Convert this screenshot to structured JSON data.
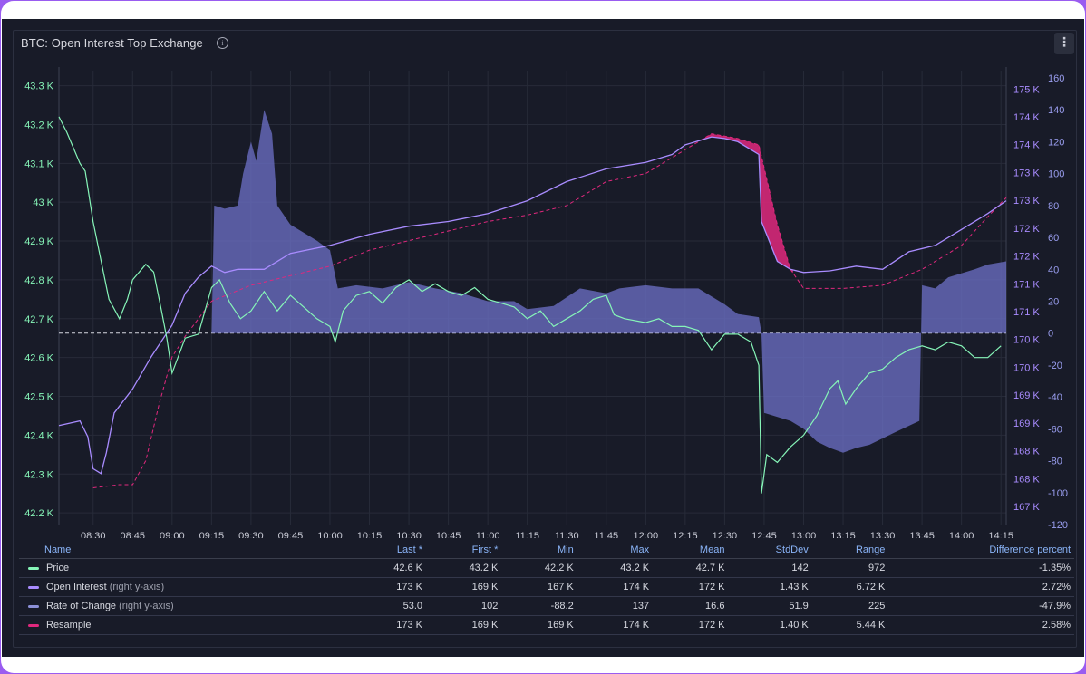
{
  "panel": {
    "title": "BTC: Open Interest Top Exchange",
    "info_icon": "info-icon",
    "menu_icon": "kebab-menu-icon"
  },
  "colors": {
    "price": "#86f5b8",
    "open_interest": "#a98cff",
    "rate_of_change": "#6d72c8",
    "resample": "#e0287d"
  },
  "chart_data": {
    "type": "line",
    "x_ticks": [
      "08:30",
      "08:45",
      "09:00",
      "09:15",
      "09:30",
      "09:45",
      "10:00",
      "10:15",
      "10:30",
      "10:45",
      "11:00",
      "11:15",
      "11:30",
      "11:45",
      "12:00",
      "12:15",
      "12:30",
      "12:45",
      "13:00",
      "13:15",
      "13:30",
      "13:45",
      "14:00",
      "14:15"
    ],
    "x_range": [
      "08:17",
      "14:17"
    ],
    "y_left": {
      "ticks": [
        "42.2 K",
        "42.3 K",
        "42.4 K",
        "42.5 K",
        "42.6 K",
        "42.7 K",
        "42.8 K",
        "42.9 K",
        "43 K",
        "43.1 K",
        "43.2 K",
        "43.3 K"
      ],
      "range": [
        42.17,
        43.32
      ]
    },
    "y_right_oi": {
      "ticks": [
        "167 K",
        "168 K",
        "168 K",
        "169 K",
        "169 K",
        "170 K",
        "170 K",
        "171 K",
        "171 K",
        "172 K",
        "172 K",
        "173 K",
        "173 K",
        "174 K",
        "174 K",
        "175 K"
      ]
    },
    "y_right_roc": {
      "ticks": [
        "-120",
        "-100",
        "-80",
        "-60",
        "-40",
        "-20",
        "0",
        "20",
        "40",
        "60",
        "80",
        "100",
        "120",
        "140",
        "160"
      ],
      "range": [
        -120,
        160
      ]
    },
    "series": [
      {
        "name": "Price",
        "axis": "left",
        "points": [
          [
            "08:17",
            43.22
          ],
          [
            "08:20",
            43.18
          ],
          [
            "08:25",
            43.1
          ],
          [
            "08:27",
            43.08
          ],
          [
            "08:30",
            42.95
          ],
          [
            "08:33",
            42.85
          ],
          [
            "08:36",
            42.75
          ],
          [
            "08:40",
            42.7
          ],
          [
            "08:43",
            42.75
          ],
          [
            "08:45",
            42.8
          ],
          [
            "08:50",
            42.84
          ],
          [
            "08:53",
            42.82
          ],
          [
            "08:56",
            42.72
          ],
          [
            "08:58",
            42.65
          ],
          [
            "09:00",
            42.56
          ],
          [
            "09:05",
            42.65
          ],
          [
            "09:10",
            42.66
          ],
          [
            "09:15",
            42.78
          ],
          [
            "09:18",
            42.8
          ],
          [
            "09:22",
            42.74
          ],
          [
            "09:26",
            42.7
          ],
          [
            "09:30",
            42.72
          ],
          [
            "09:35",
            42.77
          ],
          [
            "09:40",
            42.72
          ],
          [
            "09:45",
            42.76
          ],
          [
            "09:50",
            42.73
          ],
          [
            "09:55",
            42.7
          ],
          [
            "10:00",
            42.68
          ],
          [
            "10:02",
            42.64
          ],
          [
            "10:05",
            42.72
          ],
          [
            "10:10",
            42.76
          ],
          [
            "10:15",
            42.77
          ],
          [
            "10:20",
            42.74
          ],
          [
            "10:25",
            42.78
          ],
          [
            "10:30",
            42.8
          ],
          [
            "10:35",
            42.77
          ],
          [
            "10:40",
            42.79
          ],
          [
            "10:45",
            42.77
          ],
          [
            "10:50",
            42.76
          ],
          [
            "10:55",
            42.78
          ],
          [
            "11:00",
            42.75
          ],
          [
            "11:05",
            42.74
          ],
          [
            "11:10",
            42.73
          ],
          [
            "11:15",
            42.7
          ],
          [
            "11:20",
            42.72
          ],
          [
            "11:25",
            42.68
          ],
          [
            "11:30",
            42.7
          ],
          [
            "11:35",
            42.72
          ],
          [
            "11:40",
            42.75
          ],
          [
            "11:45",
            42.76
          ],
          [
            "11:48",
            42.71
          ],
          [
            "11:52",
            42.7
          ],
          [
            "12:00",
            42.69
          ],
          [
            "12:05",
            42.7
          ],
          [
            "12:10",
            42.68
          ],
          [
            "12:15",
            42.68
          ],
          [
            "12:20",
            42.67
          ],
          [
            "12:25",
            42.62
          ],
          [
            "12:30",
            42.66
          ],
          [
            "12:35",
            42.66
          ],
          [
            "12:40",
            42.64
          ],
          [
            "12:43",
            42.58
          ],
          [
            "12:44",
            42.25
          ],
          [
            "12:46",
            42.35
          ],
          [
            "12:50",
            42.33
          ],
          [
            "12:55",
            42.37
          ],
          [
            "13:00",
            42.4
          ],
          [
            "13:05",
            42.45
          ],
          [
            "13:10",
            42.52
          ],
          [
            "13:13",
            42.54
          ],
          [
            "13:16",
            42.48
          ],
          [
            "13:20",
            42.52
          ],
          [
            "13:25",
            42.56
          ],
          [
            "13:30",
            42.57
          ],
          [
            "13:35",
            42.6
          ],
          [
            "13:40",
            42.62
          ],
          [
            "13:45",
            42.63
          ],
          [
            "13:50",
            42.62
          ],
          [
            "13:55",
            42.64
          ],
          [
            "14:00",
            42.63
          ],
          [
            "14:05",
            42.6
          ],
          [
            "14:10",
            42.6
          ],
          [
            "14:15",
            42.63
          ]
        ]
      },
      {
        "name": "Open Interest",
        "axis": "right",
        "points": [
          [
            "08:17",
            -58
          ],
          [
            "08:25",
            -55
          ],
          [
            "08:28",
            -65
          ],
          [
            "08:30",
            -85
          ],
          [
            "08:33",
            -88
          ],
          [
            "08:35",
            -75
          ],
          [
            "08:38",
            -50
          ],
          [
            "08:45",
            -35
          ],
          [
            "08:52",
            -15
          ],
          [
            "09:00",
            5
          ],
          [
            "09:05",
            25
          ],
          [
            "09:10",
            35
          ],
          [
            "09:15",
            42
          ],
          [
            "09:20",
            38
          ],
          [
            "09:25",
            40
          ],
          [
            "09:35",
            40
          ],
          [
            "09:45",
            50
          ],
          [
            "10:00",
            55
          ],
          [
            "10:15",
            62
          ],
          [
            "10:30",
            67
          ],
          [
            "10:45",
            70
          ],
          [
            "11:00",
            75
          ],
          [
            "11:15",
            83
          ],
          [
            "11:30",
            95
          ],
          [
            "11:45",
            103
          ],
          [
            "12:00",
            107
          ],
          [
            "12:10",
            112
          ],
          [
            "12:15",
            118
          ],
          [
            "12:25",
            123
          ],
          [
            "12:30",
            122
          ],
          [
            "12:35",
            120
          ],
          [
            "12:40",
            115
          ],
          [
            "12:43",
            112
          ],
          [
            "12:44",
            70
          ],
          [
            "12:50",
            45
          ],
          [
            "12:55",
            40
          ],
          [
            "13:00",
            38
          ],
          [
            "13:10",
            39
          ],
          [
            "13:20",
            42
          ],
          [
            "13:30",
            40
          ],
          [
            "13:40",
            51
          ],
          [
            "13:50",
            55
          ],
          [
            "14:00",
            65
          ],
          [
            "14:10",
            75
          ],
          [
            "14:17",
            83
          ]
        ]
      },
      {
        "name": "Rate of Change",
        "axis": "right",
        "type": "area",
        "points": [
          [
            "09:15",
            0
          ],
          [
            "09:16",
            80
          ],
          [
            "09:20",
            78
          ],
          [
            "09:25",
            80
          ],
          [
            "09:27",
            100
          ],
          [
            "09:30",
            120
          ],
          [
            "09:32",
            108
          ],
          [
            "09:35",
            140
          ],
          [
            "09:38",
            125
          ],
          [
            "09:40",
            80
          ],
          [
            "09:45",
            68
          ],
          [
            "09:55",
            58
          ],
          [
            "10:00",
            52
          ],
          [
            "10:03",
            28
          ],
          [
            "10:10",
            30
          ],
          [
            "10:20",
            28
          ],
          [
            "10:30",
            32
          ],
          [
            "10:40",
            28
          ],
          [
            "10:50",
            25
          ],
          [
            "11:00",
            20
          ],
          [
            "11:10",
            20
          ],
          [
            "11:15",
            15
          ],
          [
            "11:25",
            17
          ],
          [
            "11:35",
            28
          ],
          [
            "11:45",
            25
          ],
          [
            "11:50",
            28
          ],
          [
            "12:00",
            30
          ],
          [
            "12:10",
            28
          ],
          [
            "12:20",
            28
          ],
          [
            "12:30",
            18
          ],
          [
            "12:35",
            12
          ],
          [
            "12:43",
            10
          ],
          [
            "12:44",
            0
          ],
          [
            "12:45",
            -50
          ],
          [
            "12:55",
            -55
          ],
          [
            "13:00",
            -60
          ],
          [
            "13:05",
            -68
          ],
          [
            "13:10",
            -72
          ],
          [
            "13:15",
            -75
          ],
          [
            "13:20",
            -72
          ],
          [
            "13:25",
            -70
          ],
          [
            "13:35",
            -62
          ],
          [
            "13:44",
            -55
          ],
          [
            "13:45",
            30
          ],
          [
            "13:50",
            28
          ],
          [
            "13:55",
            35
          ],
          [
            "14:05",
            40
          ],
          [
            "14:10",
            43
          ],
          [
            "14:17",
            45
          ]
        ]
      },
      {
        "name": "Resample",
        "axis": "right",
        "dashed": true,
        "points": [
          [
            "08:30",
            -97
          ],
          [
            "08:40",
            -95
          ],
          [
            "08:45",
            -95
          ],
          [
            "08:50",
            -80
          ],
          [
            "08:55",
            -45
          ],
          [
            "09:00",
            -15
          ],
          [
            "09:05",
            -2
          ],
          [
            "09:15",
            20
          ],
          [
            "09:30",
            30
          ],
          [
            "09:45",
            36
          ],
          [
            "10:00",
            42
          ],
          [
            "10:15",
            52
          ],
          [
            "10:30",
            58
          ],
          [
            "10:45",
            64
          ],
          [
            "11:00",
            70
          ],
          [
            "11:15",
            74
          ],
          [
            "11:30",
            80
          ],
          [
            "11:45",
            95
          ],
          [
            "12:00",
            100
          ],
          [
            "12:15",
            115
          ],
          [
            "12:25",
            125
          ],
          [
            "12:35",
            122
          ],
          [
            "12:43",
            118
          ],
          [
            "12:50",
            68
          ],
          [
            "12:55",
            40
          ],
          [
            "13:00",
            28
          ],
          [
            "13:15",
            28
          ],
          [
            "13:30",
            30
          ],
          [
            "13:45",
            40
          ],
          [
            "14:00",
            55
          ],
          [
            "14:10",
            73
          ],
          [
            "14:17",
            85
          ]
        ]
      }
    ],
    "zero_line": true
  },
  "legend": {
    "headers": [
      "Name",
      "Last *",
      "First *",
      "Min",
      "Max",
      "Mean",
      "StdDev",
      "Range",
      "Difference percent"
    ],
    "rows": [
      {
        "name": "Price",
        "note": "",
        "color": "#86f5b8",
        "values": [
          "42.6 K",
          "43.2 K",
          "42.2 K",
          "43.2 K",
          "42.7 K",
          "142",
          "972",
          "-1.35%"
        ]
      },
      {
        "name": "Open Interest",
        "note": "(right y-axis)",
        "color": "#a98cff",
        "values": [
          "173 K",
          "169 K",
          "167 K",
          "174 K",
          "172 K",
          "1.43 K",
          "6.72 K",
          "2.72%"
        ]
      },
      {
        "name": "Rate of Change",
        "note": "(right y-axis)",
        "color": "#8c90d8",
        "values": [
          "53.0",
          "102",
          "-88.2",
          "137",
          "16.6",
          "51.9",
          "225",
          "-47.9%"
        ]
      },
      {
        "name": "Resample",
        "note": "",
        "color": "#e0287d",
        "values": [
          "173 K",
          "169 K",
          "169 K",
          "174 K",
          "172 K",
          "1.40 K",
          "5.44 K",
          "2.58%"
        ]
      }
    ]
  }
}
